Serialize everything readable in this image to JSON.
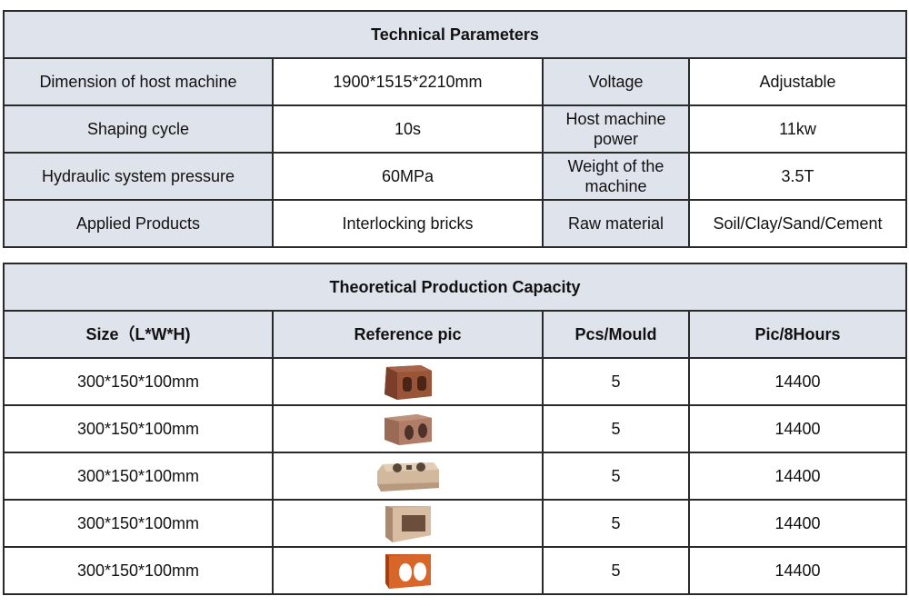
{
  "technical": {
    "title": "Technical Parameters",
    "rows": [
      [
        "Dimension of host machine",
        "1900*1515*2210mm",
        "Voltage",
        "Adjustable"
      ],
      [
        "Shaping cycle",
        "10s",
        "Host machine power",
        "11kw"
      ],
      [
        "Hydraulic system pressure",
        "60MPa",
        "Weight  of the machine",
        "3.5T"
      ],
      [
        "Applied Products",
        "Interlocking bricks",
        "Raw material",
        "Soil/Clay/Sand/Cement"
      ]
    ]
  },
  "capacity": {
    "title": "Theoretical  Production Capacity",
    "headers": [
      "Size（L*W*H)",
      "Reference pic",
      "Pcs/Mould",
      "Pic/8Hours"
    ],
    "rows": [
      {
        "size": "300*150*100mm",
        "pic": "hollow-brick-two-holes-icon",
        "pcs": "5",
        "output": "14400"
      },
      {
        "size": "300*150*100mm",
        "pic": "hollow-brick-two-round-holes-icon",
        "pcs": "5",
        "output": "14400"
      },
      {
        "size": "300*150*100mm",
        "pic": "interlocking-brick-icon",
        "pcs": "5",
        "output": "14400"
      },
      {
        "size": "300*150*100mm",
        "pic": "solid-brick-slot-icon",
        "pcs": "5",
        "output": "14400"
      },
      {
        "size": "300*150*100mm",
        "pic": "orange-hollow-brick-icon",
        "pcs": "5",
        "output": "14400"
      }
    ]
  }
}
